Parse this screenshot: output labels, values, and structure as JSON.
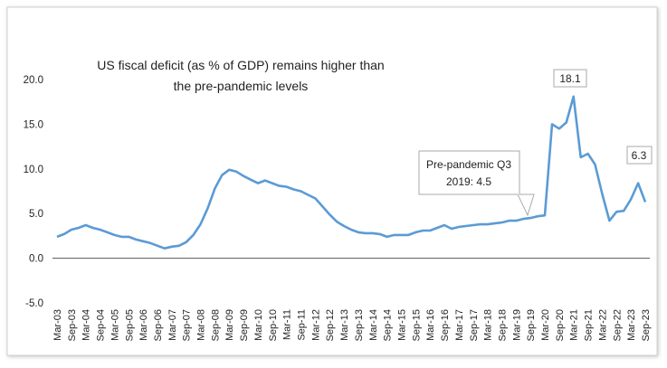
{
  "chart_data": {
    "type": "line",
    "title": [
      "US fiscal deficit (as % of GDP) remains higher than",
      "the pre-pandemic  levels"
    ],
    "categories": [
      "Mar-03",
      null,
      "Sep-03",
      null,
      "Mar-04",
      null,
      "Sep-04",
      null,
      "Mar-05",
      null,
      "Sep-05",
      null,
      "Mar-06",
      null,
      "Sep-06",
      null,
      "Mar-07",
      null,
      "Sep-07",
      null,
      "Mar-08",
      null,
      "Sep-08",
      null,
      "Mar-09",
      null,
      "Sep-09",
      null,
      "Mar-10",
      null,
      "Sep-10",
      null,
      "Mar-11",
      null,
      "Sep-11",
      null,
      "Mar-12",
      null,
      "Sep-12",
      null,
      "Mar-13",
      null,
      "Sep-13",
      null,
      "Mar-14",
      null,
      "Sep-14",
      null,
      "Mar-15",
      null,
      "Sep-15",
      null,
      "Mar-16",
      null,
      "Sep-16",
      null,
      "Mar-17",
      null,
      "Sep-17",
      null,
      "Mar-18",
      null,
      "Sep-18",
      null,
      "Mar-19",
      null,
      "Sep-19",
      null,
      "Mar-20",
      null,
      "Sep-20",
      null,
      "Mar-21",
      null,
      "Sep-21",
      null,
      "Mar-22",
      null,
      "Sep-22",
      null,
      "Mar-23",
      null,
      "Sep-23"
    ],
    "series": [
      {
        "color": "#5b9bd5",
        "values": [
          2.4,
          2.7,
          3.2,
          3.4,
          3.7,
          3.4,
          3.2,
          2.9,
          2.6,
          2.4,
          2.4,
          2.1,
          1.9,
          1.7,
          1.4,
          1.1,
          1.3,
          1.4,
          1.8,
          2.6,
          3.8,
          5.6,
          7.8,
          9.3,
          9.9,
          9.7,
          9.2,
          8.8,
          8.4,
          8.7,
          8.4,
          8.1,
          8.0,
          7.7,
          7.5,
          7.1,
          6.7,
          5.8,
          4.9,
          4.1,
          3.6,
          3.2,
          2.9,
          2.8,
          2.8,
          2.7,
          2.4,
          2.6,
          2.6,
          2.6,
          2.9,
          3.1,
          3.1,
          3.4,
          3.7,
          3.3,
          3.5,
          3.6,
          3.7,
          3.8,
          3.8,
          3.9,
          4.0,
          4.2,
          4.2,
          4.4,
          4.5,
          4.7,
          4.8,
          15.0,
          14.5,
          15.2,
          18.1,
          11.3,
          11.7,
          10.5,
          7.2,
          4.2,
          5.2,
          5.3,
          6.6,
          8.4,
          6.3
        ]
      }
    ],
    "ylim": [
      -5,
      20
    ],
    "yticks": [
      {
        "value": 20,
        "label": "20.0"
      },
      {
        "value": 15,
        "label": "15.0"
      },
      {
        "value": 10,
        "label": "10.0"
      },
      {
        "value": 5,
        "label": "5.0"
      },
      {
        "value": 0,
        "label": "0.0"
      },
      {
        "value": -5,
        "label": "-5.0"
      }
    ],
    "annotations": [
      [
        "Pre-pandemic Q3",
        "2019: 4.5"
      ],
      [
        "18.1"
      ],
      [
        "6.3"
      ]
    ]
  }
}
